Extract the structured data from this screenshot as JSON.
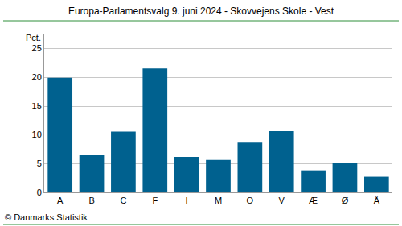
{
  "chart_data": {
    "type": "bar",
    "title": "Europa-Parlamentsvalg 9. juni 2024 - Skovvejens Skole - Vest",
    "y_label": "Pct.",
    "annotations": [
      "© Danmarks Statistik"
    ],
    "categories": [
      "A",
      "B",
      "C",
      "F",
      "I",
      "M",
      "O",
      "V",
      "Æ",
      "Ø",
      "Å"
    ],
    "values": [
      19.9,
      6.4,
      10.5,
      21.5,
      6.1,
      5.6,
      8.7,
      10.6,
      3.8,
      5.0,
      2.7
    ],
    "color": "#00618f",
    "ylim": [
      0,
      27.5
    ],
    "yticks": [
      0,
      5,
      10,
      15,
      20,
      25
    ],
    "grid": true
  }
}
